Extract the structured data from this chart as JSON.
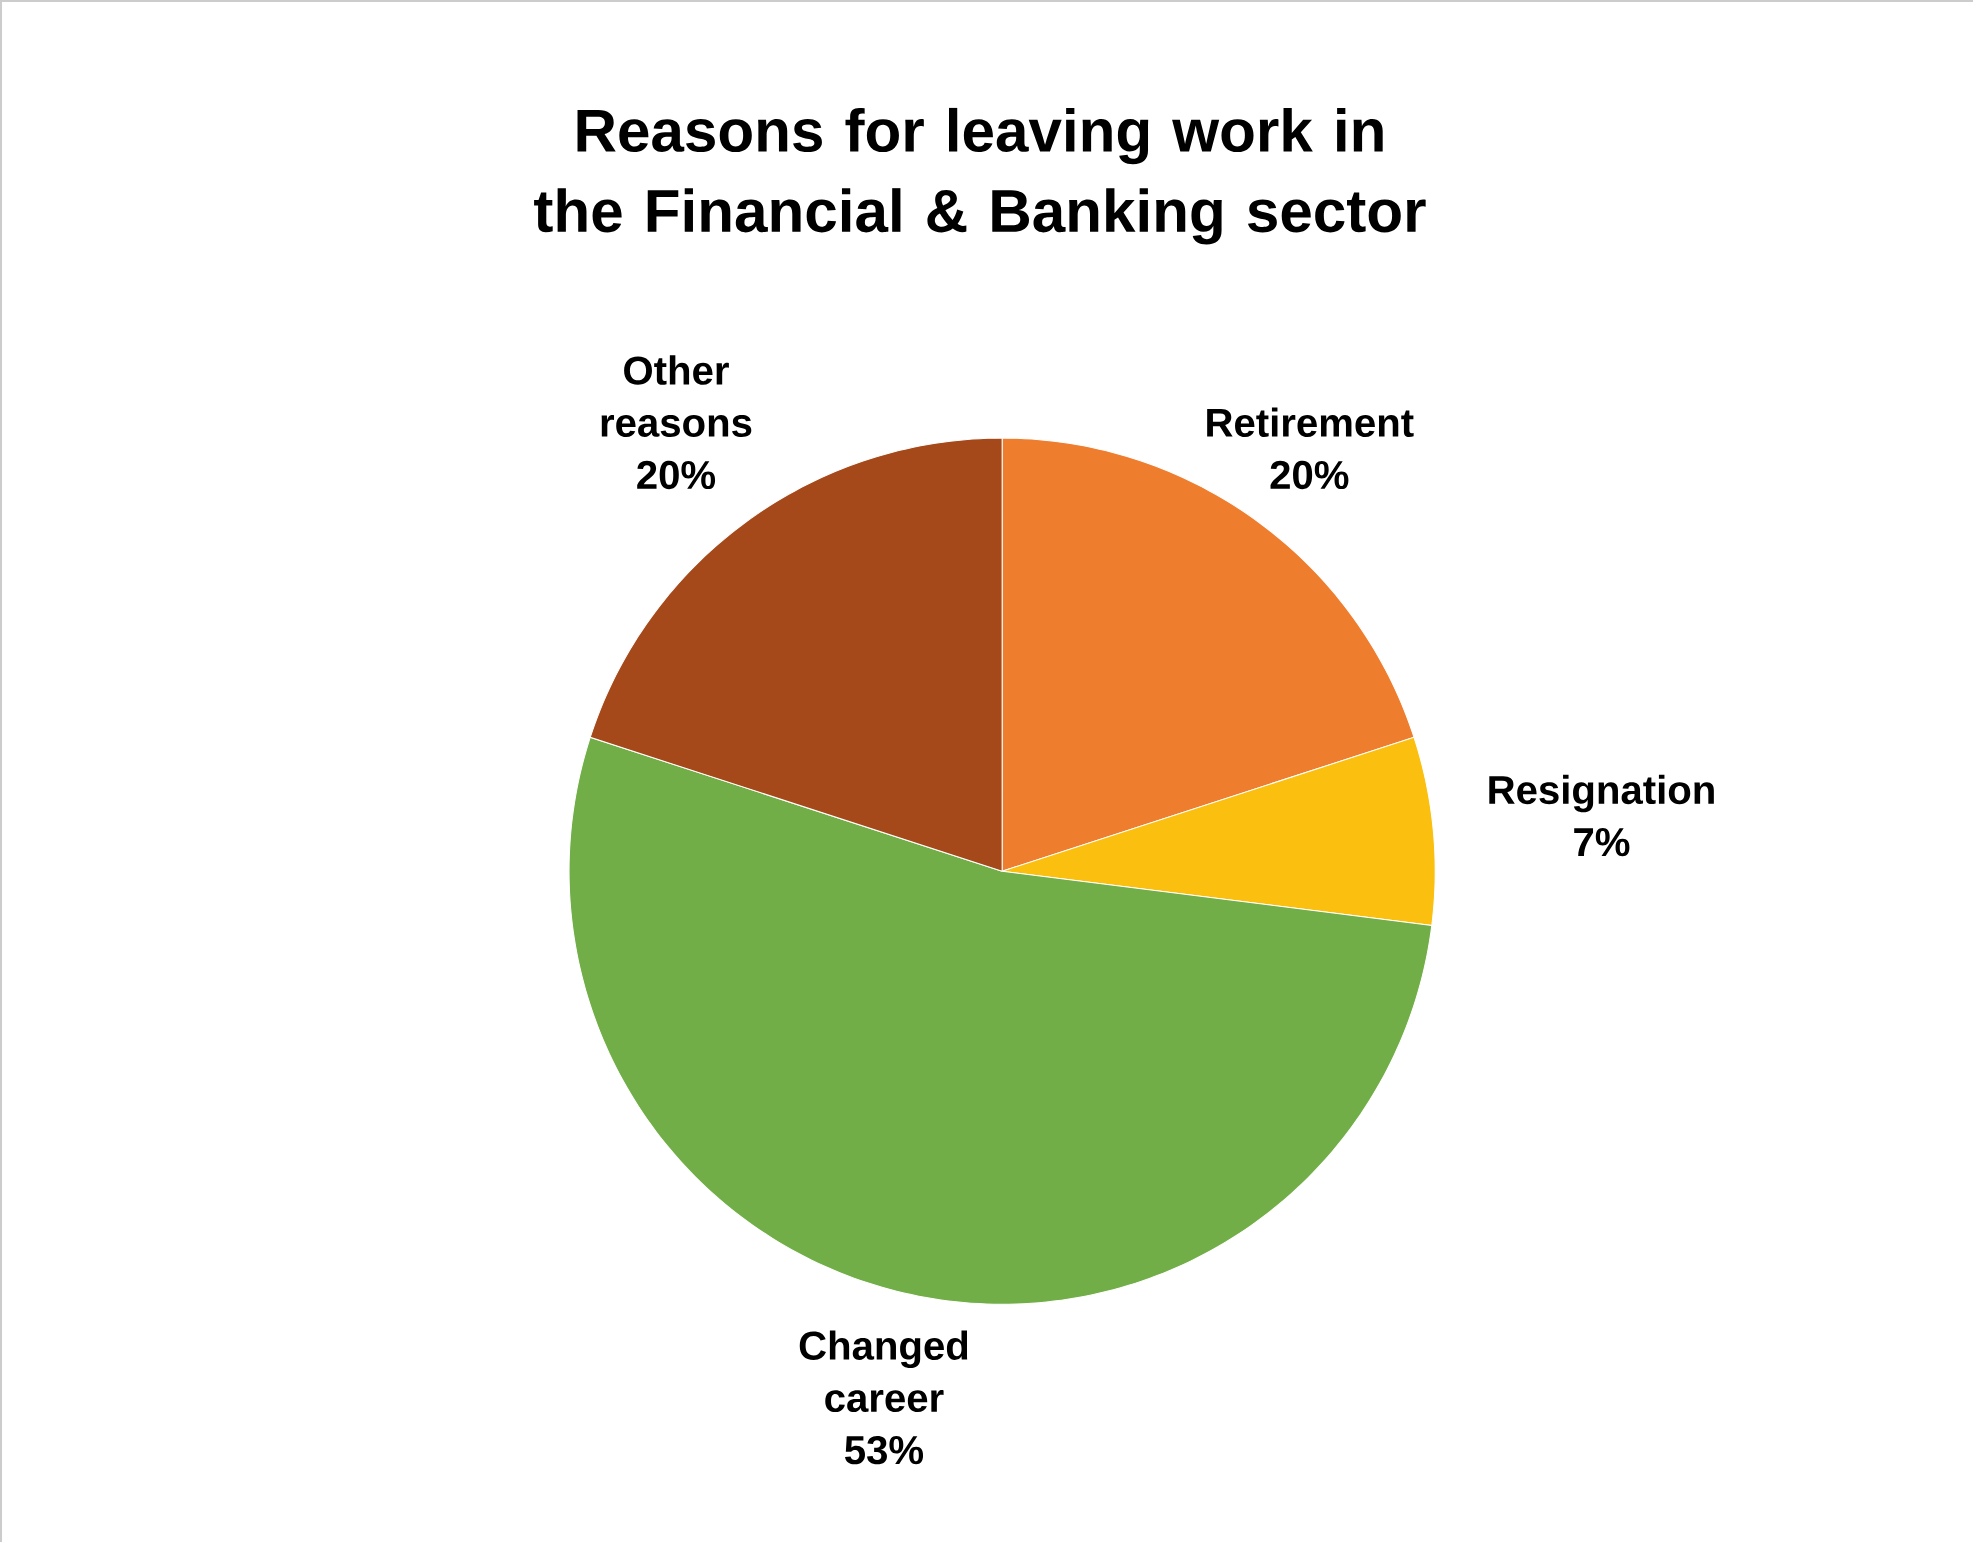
{
  "chart_data": {
    "type": "pie",
    "title": "Reasons for leaving work in the Financial & Banking sector",
    "categories": [
      "Retirement",
      "Resignation",
      "Changed career",
      "Other reasons"
    ],
    "values": [
      20,
      7,
      53,
      20
    ],
    "colors": [
      "#ef7d2e",
      "#fbbf0f",
      "#72ae48",
      "#a5491a"
    ],
    "value_labels": [
      "20%",
      "7%",
      "53%",
      "20%"
    ]
  }
}
